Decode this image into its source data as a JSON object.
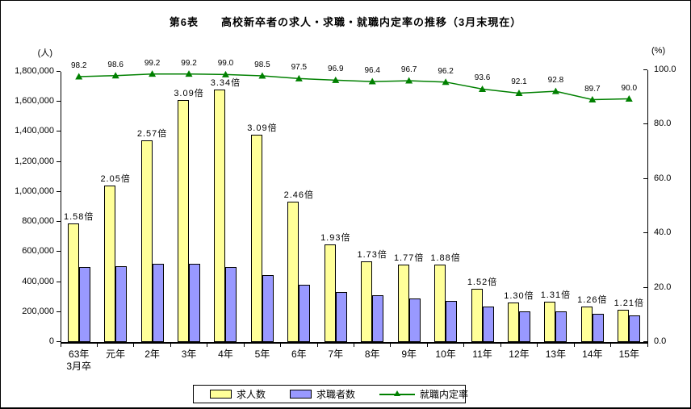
{
  "chart_data": {
    "type": "bar",
    "title": "第6表　　高校新卒者の求人・求職・就職内定率の推移（3月末現在）",
    "categories": [
      "63年3月卒",
      "元年",
      "2年",
      "3年",
      "4年",
      "5年",
      "6年",
      "7年",
      "8年",
      "9年",
      "10年",
      "11年",
      "12年",
      "13年",
      "14年",
      "15年"
    ],
    "category_labels": [
      [
        "63年",
        "3月卒"
      ],
      [
        "元年"
      ],
      [
        "2年"
      ],
      [
        "3年"
      ],
      [
        "4年"
      ],
      [
        "5年"
      ],
      [
        "6年"
      ],
      [
        "7年"
      ],
      [
        "8年"
      ],
      [
        "9年"
      ],
      [
        "10年"
      ],
      [
        "11年"
      ],
      [
        "12年"
      ],
      [
        "13年"
      ],
      [
        "14年"
      ],
      [
        "15年"
      ]
    ],
    "series": [
      {
        "name": "求人数",
        "type": "bar",
        "axis": "left",
        "color": "#FFFF99",
        "values": [
          790000,
          1040000,
          1345000,
          1610000,
          1680000,
          1380000,
          935000,
          650000,
          535000,
          515000,
          515000,
          355000,
          265000,
          270000,
          235000,
          215000
        ]
      },
      {
        "name": "求職者数",
        "type": "bar",
        "axis": "left",
        "color": "#9999FF",
        "values": [
          500000,
          505000,
          520000,
          520000,
          500000,
          445000,
          380000,
          335000,
          310000,
          290000,
          275000,
          235000,
          205000,
          205000,
          190000,
          178000
        ]
      },
      {
        "name": "就職内定率",
        "type": "line",
        "axis": "right",
        "color": "#008000",
        "values": [
          98.2,
          98.6,
          99.2,
          99.2,
          99.0,
          98.5,
          97.5,
          96.9,
          96.4,
          96.7,
          96.2,
          93.6,
          92.1,
          92.8,
          89.7,
          90.0
        ],
        "point_labels": [
          "98.2",
          "98.6",
          "99.2",
          "99.2",
          "99.0",
          "98.5",
          "97.5",
          "96.9",
          "96.4",
          "96.7",
          "96.2",
          "93.6",
          "92.1",
          "92.8",
          "89.7",
          "90.0"
        ]
      }
    ],
    "bar_ratio_labels": [
      "1.58倍",
      "2.05倍",
      "2.57倍",
      "3.09倍",
      "3.34倍",
      "3.09倍",
      "2.46倍",
      "1.93倍",
      "1.73倍",
      "1.77倍",
      "1.88倍",
      "1.52倍",
      "1.30倍",
      "1.31倍",
      "1.26倍",
      "1.21倍"
    ],
    "left_axis": {
      "unit": "(人)",
      "min": 0,
      "max": 1800000,
      "tick_labels": [
        "0",
        "200,000",
        "400,000",
        "600,000",
        "800,000",
        "1,000,000",
        "1,200,000",
        "1,400,000",
        "1,600,000",
        "1,800,000"
      ]
    },
    "right_axis": {
      "unit": "(%)",
      "min": 0,
      "max": 100,
      "tick_labels": [
        "0.0",
        "20.0",
        "40.0",
        "60.0",
        "80.0",
        "100.0"
      ]
    },
    "legend_position": "bottom",
    "grid": false
  }
}
